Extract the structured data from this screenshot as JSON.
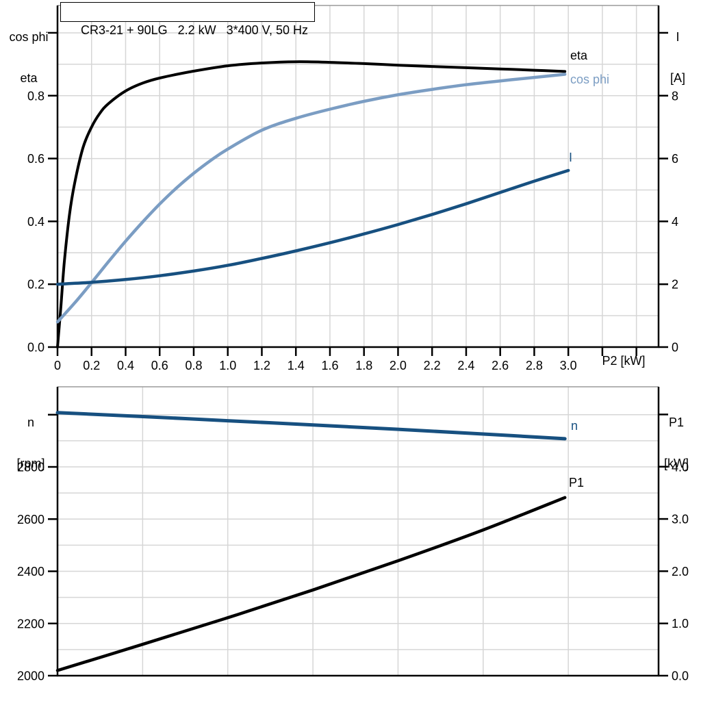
{
  "title": "CR3-21 + 90LG   2.2 kW   3*400 V, 50 Hz",
  "colors": {
    "black_curve": "#000000",
    "dark_blue_curve": "#175080",
    "light_blue_curve": "#7b9dc3",
    "grid": "#d6d6d6",
    "axis": "#000000"
  },
  "axes": {
    "top_left": [
      "cos phi",
      "eta"
    ],
    "top_right": [
      "I",
      "[A]"
    ],
    "bottom_left": [
      "n",
      "[rpm]"
    ],
    "bottom_right": [
      "P1",
      "[kW]"
    ],
    "x_label": "P2 [kW]"
  },
  "chart_data": [
    {
      "type": "line",
      "title": "CR3-21 + 90LG   2.2 kW   3*400 V, 50 Hz",
      "xlabel": "P2 [kW]",
      "ylabel_left": "cos phi / eta",
      "ylabel_right": "I [A]",
      "legend_position": "end-of-line labels",
      "grid": true,
      "xlim": [
        0,
        3.53
      ],
      "x_grid_step": 0.2,
      "x_ticks": [
        {
          "v": 0,
          "label": "0"
        },
        {
          "v": 0.2,
          "label": "0.2"
        },
        {
          "v": 0.4,
          "label": "0.4"
        },
        {
          "v": 0.6,
          "label": "0.6"
        },
        {
          "v": 0.8,
          "label": "0.8"
        },
        {
          "v": 1.0,
          "label": "1.0"
        },
        {
          "v": 1.2,
          "label": "1.2"
        },
        {
          "v": 1.4,
          "label": "1.4"
        },
        {
          "v": 1.6,
          "label": "1.6"
        },
        {
          "v": 1.8,
          "label": "1.8"
        },
        {
          "v": 2.0,
          "label": "2.0"
        },
        {
          "v": 2.2,
          "label": "2.2"
        },
        {
          "v": 2.4,
          "label": "2.4"
        },
        {
          "v": 2.6,
          "label": "2.6"
        },
        {
          "v": 2.8,
          "label": "2.8"
        },
        {
          "v": 3.0,
          "label": "3.0"
        },
        {
          "v": 3.2,
          "label": ""
        },
        {
          "v": 3.4,
          "label": ""
        }
      ],
      "left": {
        "lim": [
          0,
          1.087
        ],
        "grid_step": 0.1,
        "ticks": [
          {
            "v": 0.0,
            "label": "0.0"
          },
          {
            "v": 0.2,
            "label": "0.2"
          },
          {
            "v": 0.4,
            "label": "0.4"
          },
          {
            "v": 0.6,
            "label": "0.6"
          },
          {
            "v": 0.8,
            "label": "0.8"
          },
          {
            "v": 1.0,
            "label": ""
          }
        ]
      },
      "right": {
        "lim": [
          0,
          10.87
        ],
        "ticks": [
          {
            "v": 0,
            "label": "0"
          },
          {
            "v": 2,
            "label": "2"
          },
          {
            "v": 4,
            "label": "4"
          },
          {
            "v": 6,
            "label": "6"
          },
          {
            "v": 8,
            "label": "8"
          },
          {
            "v": 10,
            "label": ""
          }
        ]
      },
      "series": [
        {
          "name": "eta",
          "axis": "left",
          "color": "#000000",
          "stroke_width": 4,
          "points": [
            [
              0,
              0
            ],
            [
              0.02,
              0.13
            ],
            [
              0.04,
              0.27
            ],
            [
              0.07,
              0.42
            ],
            [
              0.1,
              0.52
            ],
            [
              0.15,
              0.635
            ],
            [
              0.2,
              0.7
            ],
            [
              0.25,
              0.745
            ],
            [
              0.3,
              0.775
            ],
            [
              0.4,
              0.815
            ],
            [
              0.5,
              0.84
            ],
            [
              0.6,
              0.856
            ],
            [
              0.8,
              0.878
            ],
            [
              1.0,
              0.895
            ],
            [
              1.2,
              0.904
            ],
            [
              1.4,
              0.908
            ],
            [
              1.6,
              0.906
            ],
            [
              1.8,
              0.902
            ],
            [
              2.0,
              0.897
            ],
            [
              2.2,
              0.893
            ],
            [
              2.4,
              0.889
            ],
            [
              2.6,
              0.885
            ],
            [
              2.8,
              0.881
            ],
            [
              2.98,
              0.877
            ]
          ]
        },
        {
          "name": "cos phi",
          "axis": "left",
          "color": "#7b9dc3",
          "stroke_width": 4.5,
          "points": [
            [
              0,
              0.08
            ],
            [
              0.1,
              0.14
            ],
            [
              0.2,
              0.205
            ],
            [
              0.3,
              0.272
            ],
            [
              0.4,
              0.337
            ],
            [
              0.5,
              0.398
            ],
            [
              0.6,
              0.455
            ],
            [
              0.7,
              0.507
            ],
            [
              0.8,
              0.553
            ],
            [
              0.9,
              0.594
            ],
            [
              1.0,
              0.63
            ],
            [
              1.2,
              0.69
            ],
            [
              1.4,
              0.728
            ],
            [
              1.6,
              0.757
            ],
            [
              1.8,
              0.782
            ],
            [
              2.0,
              0.803
            ],
            [
              2.2,
              0.82
            ],
            [
              2.4,
              0.835
            ],
            [
              2.6,
              0.847
            ],
            [
              2.8,
              0.858
            ],
            [
              2.98,
              0.868
            ]
          ]
        },
        {
          "name": "I",
          "axis": "right",
          "color": "#175080",
          "stroke_width": 4.5,
          "points": [
            [
              0,
              2.0
            ],
            [
              0.2,
              2.06
            ],
            [
              0.4,
              2.15
            ],
            [
              0.6,
              2.27
            ],
            [
              0.8,
              2.42
            ],
            [
              1.0,
              2.6
            ],
            [
              1.2,
              2.82
            ],
            [
              1.4,
              3.06
            ],
            [
              1.6,
              3.32
            ],
            [
              1.8,
              3.6
            ],
            [
              2.0,
              3.9
            ],
            [
              2.2,
              4.22
            ],
            [
              2.4,
              4.56
            ],
            [
              2.6,
              4.92
            ],
            [
              2.8,
              5.28
            ],
            [
              3.0,
              5.62
            ]
          ]
        }
      ]
    },
    {
      "type": "line",
      "title": "",
      "xlabel": "P2 [kW]",
      "ylabel_left": "n [rpm]",
      "ylabel_right": "P1 [kW]",
      "legend_position": "end-of-line labels",
      "grid": true,
      "xlim": [
        0,
        3.53
      ],
      "x_grid_step": 0.5,
      "x_ticks": [],
      "left": {
        "lim": [
          2000,
          3107
        ],
        "grid_step": 100,
        "ticks": [
          {
            "v": 2000,
            "label": "2000"
          },
          {
            "v": 2200,
            "label": "2200"
          },
          {
            "v": 2400,
            "label": "2400"
          },
          {
            "v": 2600,
            "label": "2600"
          },
          {
            "v": 2800,
            "label": "2800"
          },
          {
            "v": 3000,
            "label": ""
          }
        ]
      },
      "right": {
        "lim": [
          0,
          5.53
        ],
        "ticks": [
          {
            "v": 0,
            "label": "0.0"
          },
          {
            "v": 1,
            "label": "1.0"
          },
          {
            "v": 2,
            "label": "2.0"
          },
          {
            "v": 3,
            "label": "3.0"
          },
          {
            "v": 4,
            "label": "4.0"
          },
          {
            "v": 5,
            "label": ""
          }
        ]
      },
      "series": [
        {
          "name": "n",
          "axis": "left",
          "color": "#175080",
          "stroke_width": 5,
          "points": [
            [
              0,
              3008
            ],
            [
              0.5,
              2993
            ],
            [
              1.0,
              2977
            ],
            [
              1.5,
              2961
            ],
            [
              2.0,
              2944
            ],
            [
              2.5,
              2926
            ],
            [
              2.98,
              2908
            ]
          ]
        },
        {
          "name": "P1",
          "axis": "right",
          "color": "#000000",
          "stroke_width": 4.5,
          "points": [
            [
              0,
              0.1
            ],
            [
              0.5,
              0.6
            ],
            [
              1.0,
              1.11
            ],
            [
              1.5,
              1.64
            ],
            [
              2.0,
              2.2
            ],
            [
              2.5,
              2.79
            ],
            [
              2.98,
              3.41
            ]
          ]
        }
      ]
    }
  ]
}
